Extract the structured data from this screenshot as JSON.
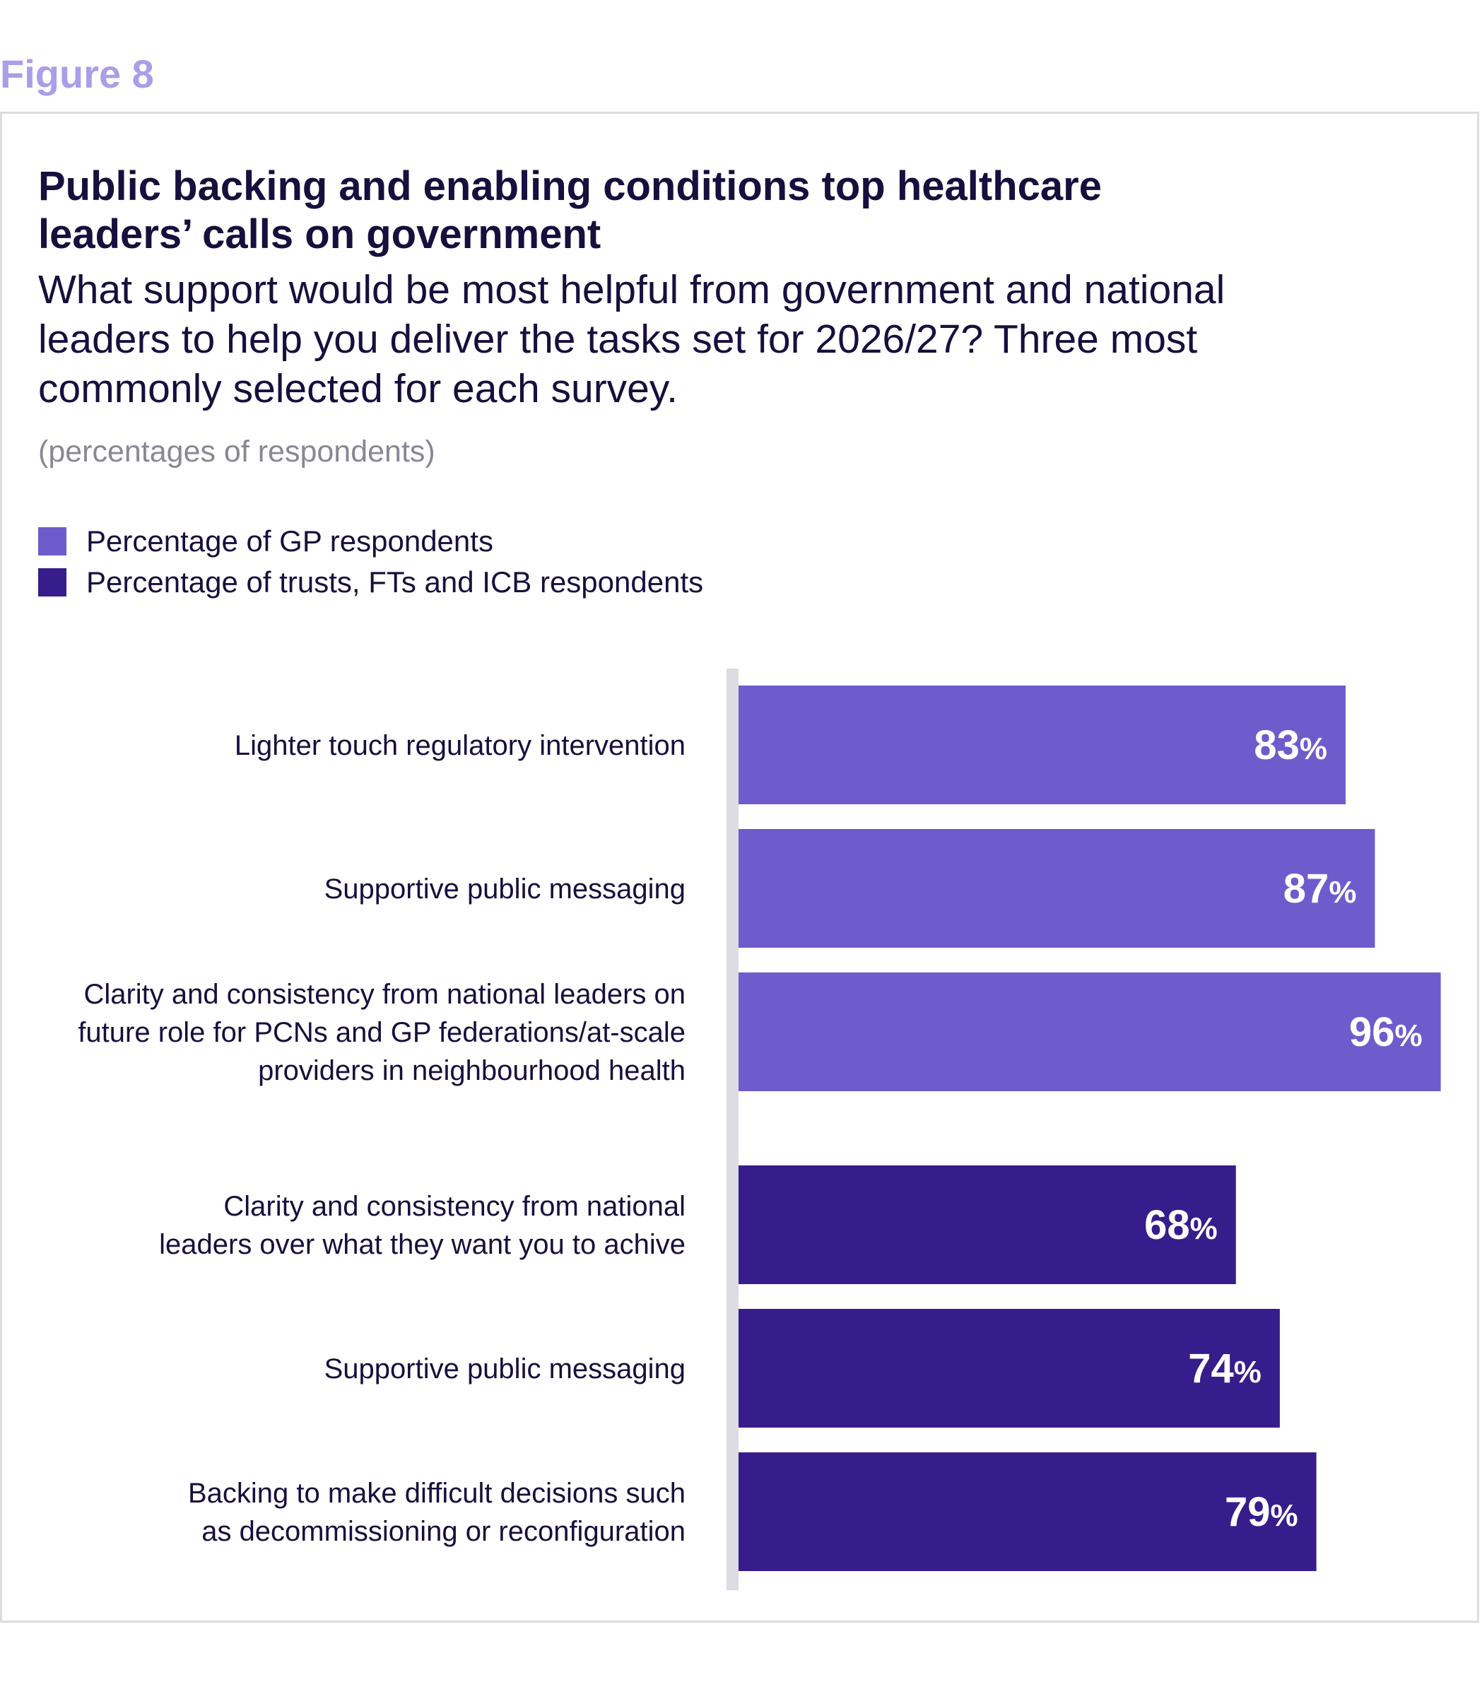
{
  "figure_label": "Figure 8",
  "chart_data": {
    "type": "bar",
    "orientation": "horizontal",
    "title": "Public backing and enabling conditions top healthcare leaders’ calls on government",
    "subtitle": "What support would be most helpful from government and national leaders to help you deliver the tasks set for 2026/27? Three most commonly selected for each survey.",
    "units_note": "(percentages of respondents)",
    "value_suffix": "%",
    "xlim": [
      0,
      100
    ],
    "grid": false,
    "legend_position": "top-left",
    "series": [
      {
        "name": "Percentage of GP respondents",
        "color": "#6e5ccc",
        "categories": [
          [
            "Lighter touch regulatory intervention"
          ],
          [
            "Supportive public messaging"
          ],
          [
            "Clarity and consistency from national leaders on",
            "future role for PCNs and GP federations/at-scale",
            "providers in neighbourhood health"
          ]
        ],
        "values": [
          83,
          87,
          96
        ]
      },
      {
        "name": "Percentage of trusts, FTs and ICB respondents",
        "color": "#371d8b",
        "categories": [
          [
            "Clarity and consistency from national",
            "leaders over what they want you to achive"
          ],
          [
            "Supportive public messaging"
          ],
          [
            "Backing to make difficult decisions such",
            "as decommissioning or reconfiguration"
          ]
        ],
        "values": [
          68,
          74,
          79
        ]
      }
    ]
  }
}
